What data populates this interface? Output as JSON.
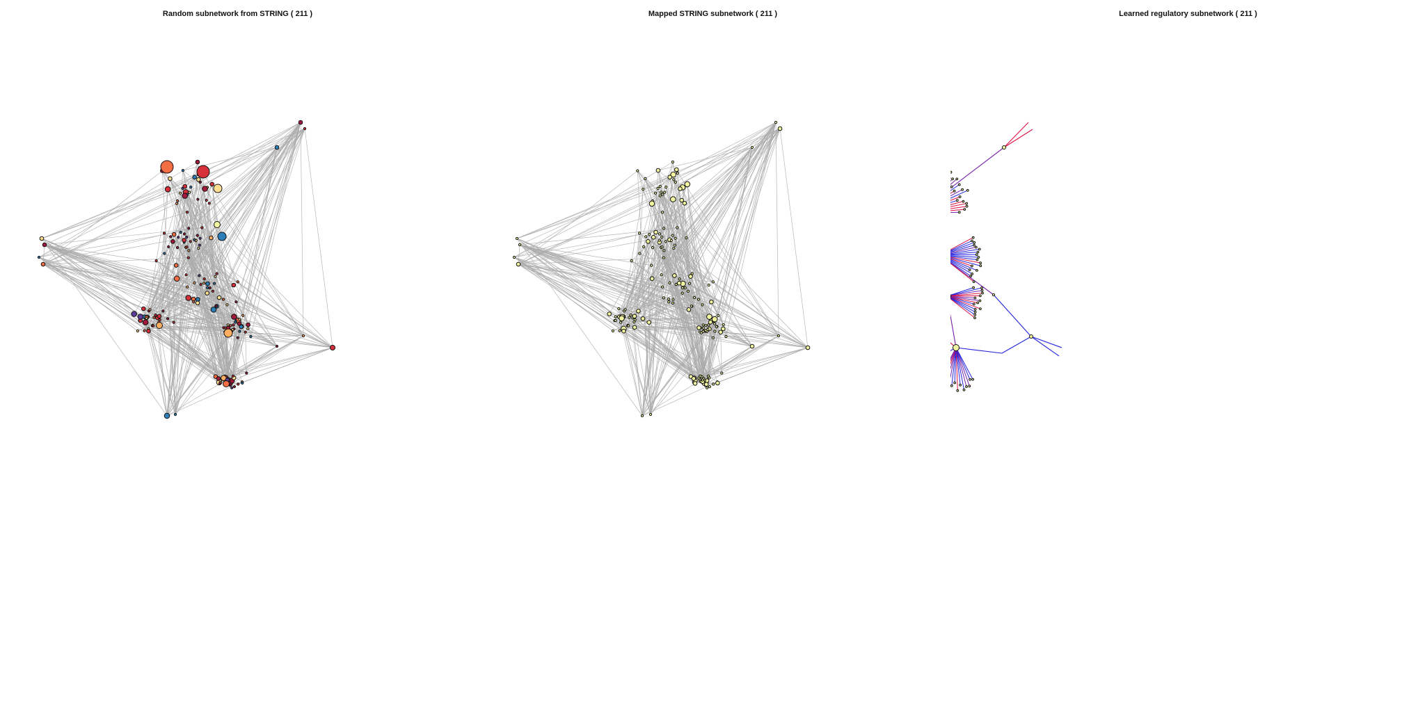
{
  "figure": {
    "panels": [
      {
        "id": "random",
        "title": "Random subnetwork from STRING ( 211 )",
        "edge_color": "#aaaaaa"
      },
      {
        "id": "mapped",
        "title": "Mapped STRING subnetwork ( 211 )",
        "edge_color": "#aaaaaa"
      },
      {
        "id": "learned",
        "title": "Learned regulatory subnetwork ( 211 )",
        "edge_colors": [
          "#2222dd",
          "#dd1144",
          "#7722aa"
        ]
      }
    ],
    "node_palette": {
      "dark_red": "#a3193a",
      "red": "#d7303a",
      "orange": "#f46d43",
      "light_orange": "#fdae61",
      "pale_yellow": "#fee090",
      "light_yellow": "#f2f5a0",
      "blue": "#2c7fb8",
      "purple": "#5e3c99"
    }
  }
}
